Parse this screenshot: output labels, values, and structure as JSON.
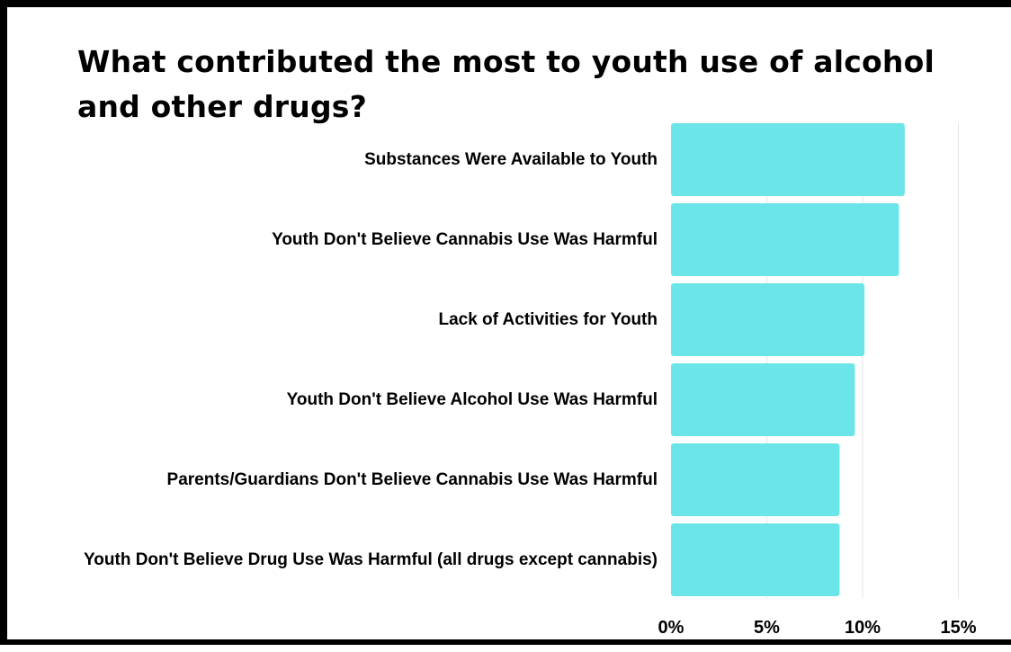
{
  "chart_data": {
    "type": "bar",
    "orientation": "horizontal",
    "title": "What contributed the most to youth use of alcohol and other drugs?",
    "categories": [
      "Substances Were Available to Youth",
      "Youth Don't Believe Cannabis Use Was Harmful",
      "Lack of Activities for Youth",
      "Youth Don't Believe Alcohol Use Was Harmful",
      "Parents/Guardians Don't Believe Cannabis Use Was Harmful",
      "Youth Don't Believe Drug Use Was Harmful (all drugs except cannabis)"
    ],
    "values": [
      12.2,
      11.9,
      10.1,
      9.6,
      8.8,
      8.8
    ],
    "xlim": [
      0,
      15
    ],
    "ticks": [
      0,
      5,
      10,
      15
    ],
    "tick_labels": [
      "0%",
      "5%",
      "10%",
      "15%"
    ],
    "bar_color": "#6ce5e8",
    "grid": true,
    "legend": "none"
  }
}
